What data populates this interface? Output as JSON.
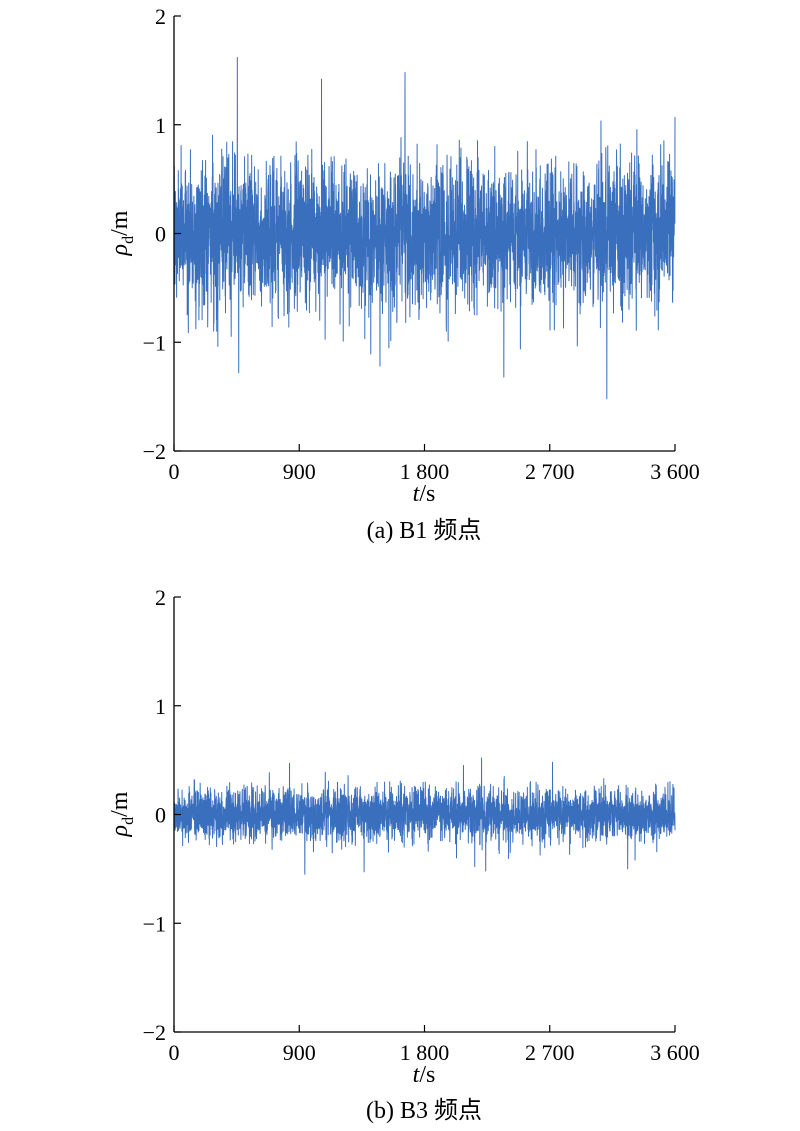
{
  "chart_data": [
    {
      "type": "line",
      "caption": "(a) B1 频点",
      "xlabel_italic": "t",
      "xlabel_unit": "/s",
      "ylabel_symbol": "ρ",
      "ylabel_sub": "d",
      "ylabel_unit": "/m",
      "xlim": [
        0,
        3600
      ],
      "ylim": [
        -2,
        2
      ],
      "xticks": [
        0,
        900,
        1800,
        2700,
        3600
      ],
      "xtick_labels": [
        "0",
        "900",
        "1 800",
        "2 700",
        "3 600"
      ],
      "yticks": [
        -2,
        -1,
        0,
        1,
        2
      ],
      "ytick_labels": [
        "−2",
        "−1",
        "0",
        "1",
        "2"
      ],
      "grid": false,
      "color": "#3A6FBE",
      "series": [
        {
          "sample_interval_s": 1,
          "typical_amplitude": 0.33,
          "peaks": [
            {
              "x": 455,
              "y": 1.62
            },
            {
              "x": 1060,
              "y": 1.42
            },
            {
              "x": 1660,
              "y": 1.48
            },
            {
              "x": 3600,
              "y": 1.07
            },
            {
              "x": 465,
              "y": -1.28
            },
            {
              "x": 1480,
              "y": -1.22
            },
            {
              "x": 2370,
              "y": -1.32
            },
            {
              "x": 3110,
              "y": -1.52
            }
          ]
        }
      ]
    },
    {
      "type": "line",
      "caption": "(b) B3 频点",
      "xlabel_italic": "t",
      "xlabel_unit": "/s",
      "ylabel_symbol": "ρ",
      "ylabel_sub": "d",
      "ylabel_unit": "/m",
      "xlim": [
        0,
        3600
      ],
      "ylim": [
        -2,
        2
      ],
      "xticks": [
        0,
        900,
        1800,
        2700,
        3600
      ],
      "xtick_labels": [
        "0",
        "900",
        "1 800",
        "2 700",
        "3 600"
      ],
      "yticks": [
        -2,
        -1,
        0,
        1,
        2
      ],
      "ytick_labels": [
        "−2",
        "−1",
        "0",
        "1",
        "2"
      ],
      "grid": false,
      "color": "#3A6FBE",
      "series": [
        {
          "sample_interval_s": 1,
          "typical_amplitude": 0.12,
          "peaks": [
            {
              "x": 2210,
              "y": 0.52
            },
            {
              "x": 2720,
              "y": 0.48
            },
            {
              "x": 2080,
              "y": 0.45
            },
            {
              "x": 830,
              "y": 0.47
            },
            {
              "x": 940,
              "y": -0.55
            },
            {
              "x": 2240,
              "y": -0.52
            },
            {
              "x": 3260,
              "y": -0.5
            }
          ]
        }
      ]
    }
  ]
}
